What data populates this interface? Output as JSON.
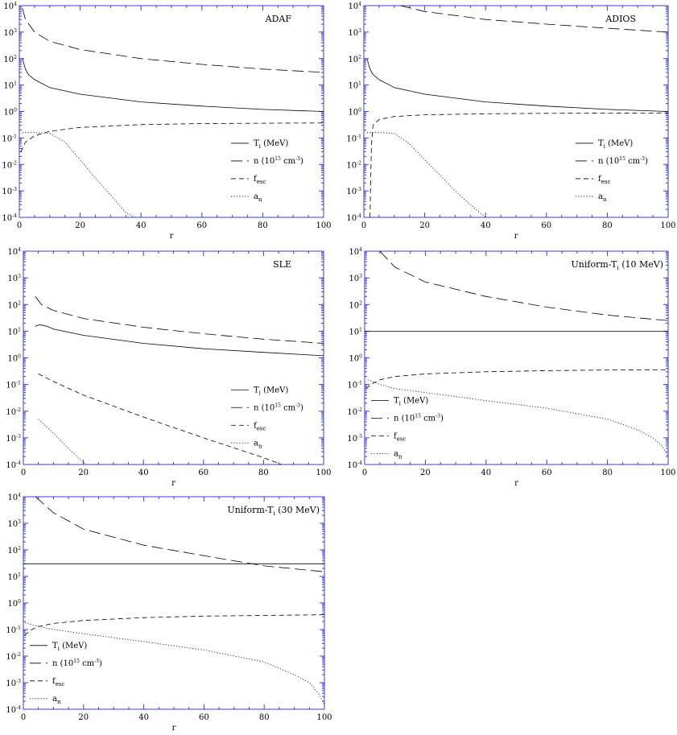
{
  "chart_data": [
    {
      "type": "line",
      "title": "ADAF",
      "xlabel": "r",
      "xlim": [
        0,
        100
      ],
      "ylim": [
        0.0001,
        10000
      ],
      "yscale": "log",
      "x_ticks": [
        "0",
        "20",
        "40",
        "60",
        "80",
        "100"
      ],
      "legend_position": "right-middle",
      "series": [
        {
          "name": "Ti (MeV)",
          "style": "solid",
          "x": [
            1,
            2,
            3,
            5,
            10,
            20,
            40,
            60,
            80,
            100
          ],
          "values": [
            100,
            40,
            25,
            16,
            8,
            4.5,
            2.3,
            1.6,
            1.2,
            1.0
          ]
        },
        {
          "name": "n (10^15 cm^-3)",
          "style": "long-dash",
          "x": [
            1,
            2,
            5,
            10,
            20,
            40,
            60,
            80,
            100
          ],
          "values": [
            8000,
            3000,
            1000,
            450,
            220,
            100,
            60,
            40,
            30
          ]
        },
        {
          "name": "fesc",
          "style": "short-dash",
          "x": [
            0.5,
            2,
            5,
            10,
            20,
            40,
            60,
            80,
            100
          ],
          "values": [
            0.03,
            0.07,
            0.12,
            0.18,
            0.25,
            0.32,
            0.35,
            0.36,
            0.37
          ]
        },
        {
          "name": "an",
          "style": "dotted",
          "x": [
            1,
            5,
            10,
            15,
            20,
            25,
            30,
            35,
            38
          ],
          "values": [
            0.16,
            0.16,
            0.15,
            0.07,
            0.015,
            0.003,
            0.0007,
            0.00015,
            0.0001
          ]
        }
      ]
    },
    {
      "type": "line",
      "title": "ADIOS",
      "xlabel": "r",
      "xlim": [
        0,
        100
      ],
      "ylim": [
        0.0001,
        10000
      ],
      "yscale": "log",
      "x_ticks": [
        "0",
        "20",
        "40",
        "60",
        "80",
        "100"
      ],
      "legend_position": "right-middle",
      "series": [
        {
          "name": "Ti (MeV)",
          "style": "solid",
          "x": [
            1,
            2,
            3,
            5,
            10,
            20,
            40,
            60,
            80,
            100
          ],
          "values": [
            100,
            40,
            25,
            16,
            8,
            4.5,
            2.3,
            1.6,
            1.2,
            1.0
          ]
        },
        {
          "name": "n (10^15 cm^-3)",
          "style": "long-dash",
          "x": [
            12,
            20,
            40,
            60,
            80,
            100
          ],
          "values": [
            10000,
            6000,
            3000,
            2000,
            1400,
            1000
          ]
        },
        {
          "name": "fesc",
          "style": "short-dash",
          "x": [
            2,
            2.5,
            3,
            5,
            10,
            20,
            40,
            60,
            80,
            100
          ],
          "values": [
            0.0001,
            0.05,
            0.3,
            0.5,
            0.65,
            0.75,
            0.82,
            0.85,
            0.87,
            0.88
          ]
        },
        {
          "name": "an",
          "style": "dotted",
          "x": [
            1,
            5,
            10,
            15,
            20,
            25,
            30,
            35,
            40
          ],
          "values": [
            0.16,
            0.16,
            0.15,
            0.06,
            0.015,
            0.004,
            0.001,
            0.0003,
            0.0001
          ]
        }
      ]
    },
    {
      "type": "line",
      "title": "SLE",
      "xlabel": "r",
      "xlim": [
        0,
        100
      ],
      "ylim": [
        0.0001,
        10000
      ],
      "yscale": "log",
      "x_ticks": [
        "0",
        "20",
        "40",
        "60",
        "80",
        "100"
      ],
      "legend_position": "right-middle",
      "series": [
        {
          "name": "Ti (MeV)",
          "style": "solid",
          "x": [
            4,
            5,
            6,
            8,
            10,
            20,
            40,
            60,
            80,
            100
          ],
          "values": [
            15,
            17,
            17,
            15,
            12,
            7,
            3.5,
            2.2,
            1.6,
            1.2
          ]
        },
        {
          "name": "n (10^15 cm^-3)",
          "style": "long-dash",
          "x": [
            4,
            6,
            10,
            20,
            40,
            60,
            80,
            100
          ],
          "values": [
            200,
            100,
            60,
            30,
            14,
            8,
            5,
            3.5
          ]
        },
        {
          "name": "fesc",
          "style": "short-dash",
          "x": [
            5,
            10,
            20,
            40,
            60,
            80,
            86
          ],
          "values": [
            0.25,
            0.13,
            0.04,
            0.006,
            0.001,
            0.00018,
            0.0001
          ]
        },
        {
          "name": "an",
          "style": "dotted",
          "x": [
            5,
            10,
            15,
            20,
            21
          ],
          "values": [
            0.005,
            0.0015,
            0.0004,
            0.00012,
            0.0001
          ]
        }
      ]
    },
    {
      "type": "line",
      "title": "Uniform-Ti (10 MeV)",
      "xlabel": "r",
      "xlim": [
        0,
        100
      ],
      "ylim": [
        0.0001,
        10000
      ],
      "yscale": "log",
      "x_ticks": [
        "0",
        "20",
        "40",
        "60",
        "80",
        "100"
      ],
      "legend_position": "left-bottom",
      "series": [
        {
          "name": "Ti (MeV)",
          "style": "solid",
          "x": [
            0,
            100
          ],
          "values": [
            10,
            10
          ]
        },
        {
          "name": "n (10^15 cm^-3)",
          "style": "long-dash",
          "x": [
            5,
            10,
            20,
            40,
            60,
            80,
            100
          ],
          "values": [
            10000,
            2500,
            700,
            200,
            80,
            40,
            25
          ]
        },
        {
          "name": "fesc",
          "style": "short-dash",
          "x": [
            0.5,
            2,
            5,
            10,
            20,
            40,
            60,
            80,
            100
          ],
          "values": [
            0.07,
            0.1,
            0.15,
            0.2,
            0.25,
            0.3,
            0.33,
            0.35,
            0.36
          ]
        },
        {
          "name": "an",
          "style": "dotted",
          "x": [
            1,
            5,
            10,
            20,
            40,
            60,
            80,
            90,
            95,
            98,
            100
          ],
          "values": [
            0.15,
            0.1,
            0.07,
            0.05,
            0.025,
            0.013,
            0.005,
            0.002,
            0.001,
            0.0005,
            0.0002
          ]
        }
      ]
    },
    {
      "type": "line",
      "title": "Uniform-Ti (30 MeV)",
      "xlabel": "r",
      "xlim": [
        0,
        100
      ],
      "ylim": [
        0.0001,
        10000
      ],
      "yscale": "log",
      "x_ticks": [
        "0",
        "20",
        "40",
        "60",
        "80",
        "100"
      ],
      "legend_position": "left-bottom",
      "series": [
        {
          "name": "Ti (MeV)",
          "style": "solid",
          "x": [
            0,
            100
          ],
          "values": [
            30,
            30
          ]
        },
        {
          "name": "n (10^15 cm^-3)",
          "style": "long-dash",
          "x": [
            4,
            10,
            20,
            40,
            60,
            80,
            100
          ],
          "values": [
            10000,
            2500,
            600,
            150,
            60,
            25,
            15
          ]
        },
        {
          "name": "fesc",
          "style": "short-dash",
          "x": [
            0.5,
            2,
            5,
            10,
            20,
            40,
            60,
            80,
            100
          ],
          "values": [
            0.06,
            0.09,
            0.13,
            0.17,
            0.22,
            0.28,
            0.32,
            0.34,
            0.36
          ]
        },
        {
          "name": "an",
          "style": "dotted",
          "x": [
            0.5,
            5,
            10,
            20,
            40,
            60,
            80,
            90,
            95,
            98,
            100
          ],
          "values": [
            0.18,
            0.13,
            0.1,
            0.07,
            0.035,
            0.017,
            0.006,
            0.002,
            0.001,
            0.0004,
            0.00015
          ]
        }
      ]
    }
  ]
}
